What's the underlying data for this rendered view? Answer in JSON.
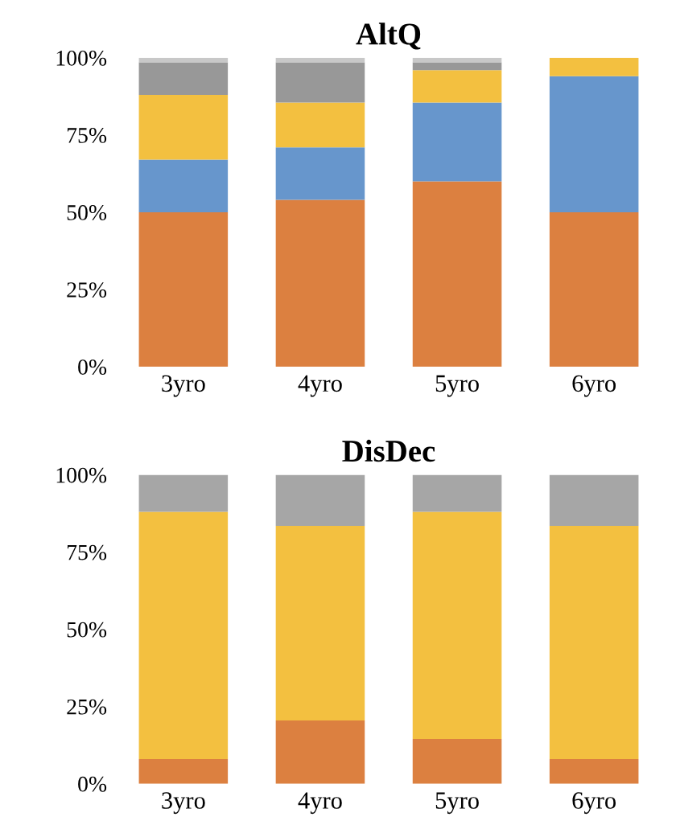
{
  "chart_data": [
    {
      "type": "bar",
      "title": "AltQ",
      "stacked": true,
      "categories": [
        "3yro",
        "4yro",
        "5yro",
        "6yro"
      ],
      "ylim": [
        0,
        100
      ],
      "yticks": [
        {
          "value": 0,
          "label": "0%"
        },
        {
          "value": 25,
          "label": "25%"
        },
        {
          "value": 50,
          "label": "50%"
        },
        {
          "value": 75,
          "label": "75%"
        },
        {
          "value": 100,
          "label": "100%"
        }
      ],
      "series": [
        {
          "color": "#dc8040",
          "values": [
            50,
            54,
            60,
            50
          ]
        },
        {
          "color": "#6796cc",
          "values": [
            17,
            17,
            25.5,
            44
          ]
        },
        {
          "color": "#f3c040",
          "values": [
            21,
            14.5,
            10.5,
            6
          ]
        },
        {
          "color": "#989898",
          "values": [
            10.5,
            13,
            2.5,
            0
          ]
        },
        {
          "color": "#c8c8c8",
          "values": [
            1.5,
            1.5,
            1.5,
            0
          ]
        }
      ]
    },
    {
      "type": "bar",
      "title": "DisDec",
      "stacked": true,
      "categories": [
        "3yro",
        "4yro",
        "5yro",
        "6yro"
      ],
      "ylim": [
        0,
        100
      ],
      "yticks": [
        {
          "value": 0,
          "label": "0%"
        },
        {
          "value": 25,
          "label": "25%"
        },
        {
          "value": 50,
          "label": "50%"
        },
        {
          "value": 75,
          "label": "75%"
        },
        {
          "value": 100,
          "label": "100%"
        }
      ],
      "series": [
        {
          "color": "#dc8040",
          "values": [
            8,
            20.5,
            14.5,
            8
          ]
        },
        {
          "color": "#f3c040",
          "values": [
            80,
            63,
            73.5,
            75.5
          ]
        },
        {
          "color": "#a6a6a6",
          "values": [
            12,
            16.5,
            12,
            16.5
          ]
        }
      ]
    }
  ]
}
